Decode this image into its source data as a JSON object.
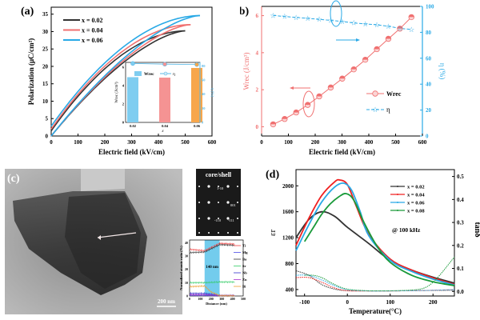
{
  "chart_data": [
    {
      "panel": "(a)",
      "type": "line",
      "title": "",
      "xlabel": "Electric field (kV/cm)",
      "ylabel": "Polarization (μC/cm²)",
      "xlim": [
        0,
        600
      ],
      "ylim": [
        0,
        37
      ],
      "xticks": [
        0,
        100,
        200,
        300,
        400,
        500,
        600
      ],
      "yticks": [
        0,
        5,
        10,
        15,
        20,
        25,
        30,
        35
      ],
      "legend": "top-left",
      "series": [
        {
          "name": "x = 0.02",
          "color": "#333333",
          "Emax": 500,
          "Pmax": 30.2,
          "Pr": 1.5
        },
        {
          "name": "x = 0.04",
          "color": "#f07070",
          "Emax": 520,
          "Pmax": 32.0,
          "Pr": 2.0
        },
        {
          "name": "x = 0.06",
          "color": "#29a9e6",
          "Emax": 555,
          "Pmax": 34.6,
          "Pr": 2.8
        }
      ],
      "inset": {
        "type": "bar",
        "categories": [
          "0.02",
          "0.04",
          "0.06"
        ],
        "xlabel": "x",
        "ylabel": "Wrec (J/cm³)",
        "y2label": "η (%)",
        "ylim": [
          0,
          6.5
        ],
        "y2lim": [
          0,
          85
        ],
        "yticks": [
          0,
          2,
          4,
          6
        ],
        "y2ticks": [
          0,
          20,
          40,
          60,
          80
        ],
        "series": [
          {
            "name": "Wrec",
            "values": [
              4.9,
              4.85,
              5.9
            ],
            "colors": [
              "#7fcdf0",
              "#f59393",
              "#f7a64b"
            ]
          },
          {
            "name": "η",
            "values": [
              83.5,
              82.5,
              82.0
            ],
            "color": "#5bb9e6"
          }
        ],
        "legend": [
          "Wrec",
          "η"
        ]
      }
    },
    {
      "panel": "(b)",
      "type": "line",
      "xlabel": "Electric field (kV/cm)",
      "ylabel": "Wrec (J/cm³)",
      "y2label": "η (%)",
      "xlim": [
        0,
        600
      ],
      "ylim": [
        -0.5,
        6.5
      ],
      "y2lim": [
        0,
        100
      ],
      "xticks": [
        0,
        100,
        200,
        300,
        400,
        500,
        600
      ],
      "yticks": [
        0,
        2,
        4,
        6
      ],
      "y2ticks": [
        0,
        20,
        40,
        60,
        80,
        100
      ],
      "legend": "center-right",
      "x": [
        43,
        86,
        129,
        172,
        215,
        258,
        301,
        344,
        387,
        430,
        473,
        516,
        559
      ],
      "series": [
        {
          "name": "Wrec",
          "axis": "left",
          "color": "#f07070",
          "marker": "half-circle",
          "values": [
            0.13,
            0.42,
            0.77,
            1.18,
            1.64,
            2.12,
            2.6,
            3.1,
            3.62,
            4.19,
            4.75,
            5.3,
            5.92
          ]
        },
        {
          "name": "η",
          "axis": "right",
          "color": "#29a9e6",
          "marker": "star",
          "values": [
            93.0,
            92.2,
            91.5,
            90.8,
            90.0,
            89.2,
            88.4,
            87.2,
            86.5,
            85.8,
            84.7,
            83.0,
            82.2
          ]
        }
      ]
    },
    {
      "panel": "(c)",
      "type": "line",
      "xlabel": "Distance (nm)",
      "ylabel": "Normalized atomic ratio (%)",
      "xlim": [
        0,
        500
      ],
      "ylim": [
        0,
        42
      ],
      "xticks": [
        0,
        100,
        200,
        300,
        400,
        500
      ],
      "yticks": [
        0,
        10,
        20,
        30,
        40
      ],
      "shaded_region": {
        "from": 140,
        "to": 280,
        "label": "140 nm",
        "color": "#5bc3ea"
      },
      "legend": "right",
      "series": [
        {
          "name": "Ti",
          "color": "#f24040",
          "x": [
            0,
            140,
            280,
            420
          ],
          "values": [
            35,
            34,
            39.5,
            39
          ]
        },
        {
          "name": "Mg",
          "color": "#4a4ae8",
          "x": [
            0,
            140,
            280,
            420
          ],
          "values": [
            0.5,
            0.5,
            0.3,
            0.3
          ]
        },
        {
          "name": "Ba",
          "color": "#333333",
          "x": [
            0,
            140,
            280,
            420
          ],
          "values": [
            32.5,
            33,
            38.5,
            38
          ]
        },
        {
          "name": "Sr",
          "color": "#33cc66",
          "x": [
            0,
            140,
            280,
            420
          ],
          "values": [
            10,
            10,
            10.5,
            10.5
          ]
        },
        {
          "name": "Nb",
          "color": "#3333cc",
          "x": [
            0,
            140,
            280,
            420
          ],
          "values": [
            2,
            2,
            0.5,
            0.5
          ]
        },
        {
          "name": "Zn",
          "color": "#aa33cc",
          "x": [
            0,
            140,
            280,
            420
          ],
          "values": [
            1,
            1,
            0.4,
            0.4
          ]
        },
        {
          "name": "Bi",
          "color": "#f0a030",
          "x": [
            0,
            140,
            200,
            280,
            420
          ],
          "values": [
            7,
            7.5,
            3,
            0.3,
            0.2
          ]
        }
      ]
    },
    {
      "panel": "(d)",
      "type": "line",
      "xlabel": "Temperature(°C)",
      "ylabel": "εr",
      "y2label": "tanδ",
      "xlim": [
        -120,
        250
      ],
      "ylim": [
        300,
        2250
      ],
      "y2lim": [
        -0.02,
        0.53
      ],
      "xticks": [
        -100,
        0,
        100,
        200
      ],
      "yticks": [
        400,
        800,
        1200,
        1600,
        2000
      ],
      "y2ticks": [
        0.0,
        0.1,
        0.2,
        0.3,
        0.4,
        0.5
      ],
      "annotation": "@ 100 kHz",
      "legend": "top-right",
      "series": [
        {
          "name": "x = 0.02",
          "color": "#333333",
          "er": {
            "x": [
              -120,
              -90,
              -60,
              -30,
              0,
              50,
              100,
              150,
              200,
              250
            ],
            "values": [
              1200,
              1480,
              1600,
              1530,
              1360,
              1110,
              850,
              700,
              590,
              500
            ]
          },
          "tan": {
            "x": [
              -120,
              -90,
              -60,
              -30,
              0,
              50,
              100,
              150,
              200,
              250
            ],
            "values": [
              0.09,
              0.07,
              0.03,
              0.01,
              0.003,
              0.002,
              0.002,
              0.003,
              0.004,
              0.005
            ]
          }
        },
        {
          "name": "x = 0.04",
          "color": "#f02020",
          "er": {
            "x": [
              -120,
              -90,
              -60,
              -30,
              -18,
              0,
              20,
              50,
              100,
              150,
              200,
              250
            ],
            "values": [
              1080,
              1500,
              1850,
              2060,
              2090,
              2020,
              1700,
              1250,
              870,
              700,
              580,
              480
            ]
          },
          "tan": {
            "x": [
              -120,
              -90,
              -60,
              -30,
              0,
              50,
              100,
              150,
              200,
              250
            ],
            "values": [
              0.06,
              0.06,
              0.04,
              0.015,
              0.003,
              0.002,
              0.002,
              0.003,
              0.005,
              0.008
            ]
          }
        },
        {
          "name": "x = 0.06",
          "color": "#29a9e6",
          "er": {
            "x": [
              -120,
              -90,
              -60,
              -30,
              -8,
              10,
              30,
              50,
              100,
              150,
              200,
              250
            ],
            "values": [
              1000,
              1400,
              1750,
              1980,
              2040,
              1930,
              1600,
              1230,
              850,
              680,
              560,
              470
            ]
          },
          "tan": {
            "x": [
              -120,
              -90,
              -60,
              -30,
              0,
              50,
              100,
              150,
              200,
              250
            ],
            "values": [
              0.07,
              0.07,
              0.05,
              0.025,
              0.008,
              0.002,
              0.002,
              0.003,
              0.005,
              0.008
            ]
          }
        },
        {
          "name": "x = 0.08",
          "color": "#1a9a3a",
          "er": {
            "x": [
              -100,
              -80,
              -60,
              -40,
              -20,
              -3,
              15,
              40,
              70,
              100,
              150,
              200,
              250
            ],
            "values": [
              1140,
              1350,
              1560,
              1720,
              1830,
              1880,
              1780,
              1420,
              1060,
              820,
              620,
              520,
              460
            ]
          },
          "tan": {
            "x": [
              -100,
              -80,
              -60,
              -30,
              0,
              50,
              100,
              150,
              180,
              200,
              220,
              250
            ],
            "values": [
              0.07,
              0.07,
              0.06,
              0.03,
              0.01,
              0.003,
              0.003,
              0.006,
              0.015,
              0.04,
              0.08,
              0.15
            ]
          }
        }
      ]
    }
  ],
  "labels": {
    "a": "(a)",
    "b": "(b)",
    "c": "(c)",
    "d": "(d)",
    "core_shell": "core/shell",
    "scale_bar": "200 nm",
    "saed": [
      "1-10",
      "001",
      "-110",
      "-111"
    ],
    "region_width": "140 nm",
    "freq": "@ 100 kHz"
  }
}
